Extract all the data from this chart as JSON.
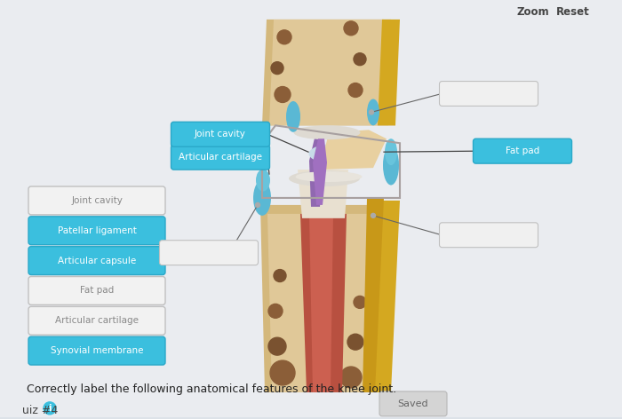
{
  "title": "Correctly label the following anatomical features of the knee joint.",
  "quiz_label": "uiz #4",
  "saved_label": "Saved",
  "bg_color": "#dde2e8",
  "panel_color": "#eaecf0",
  "button_cyan_color": "#3bbfde",
  "button_outline_color": "#c8c8c8",
  "button_text_color": "#ffffff",
  "button_outline_text_color": "#909090",
  "left_buttons": [
    {
      "label": "Synovial membrane",
      "filled": true
    },
    {
      "label": "Articular cartilage",
      "filled": false
    },
    {
      "label": "Fat pad",
      "filled": false
    },
    {
      "label": "Articular capsule",
      "filled": true
    },
    {
      "label": "Patellar ligament",
      "filled": true
    },
    {
      "label": "Joint cavity",
      "filled": false
    }
  ],
  "title_fontsize": 9,
  "button_fontsize": 7.5
}
